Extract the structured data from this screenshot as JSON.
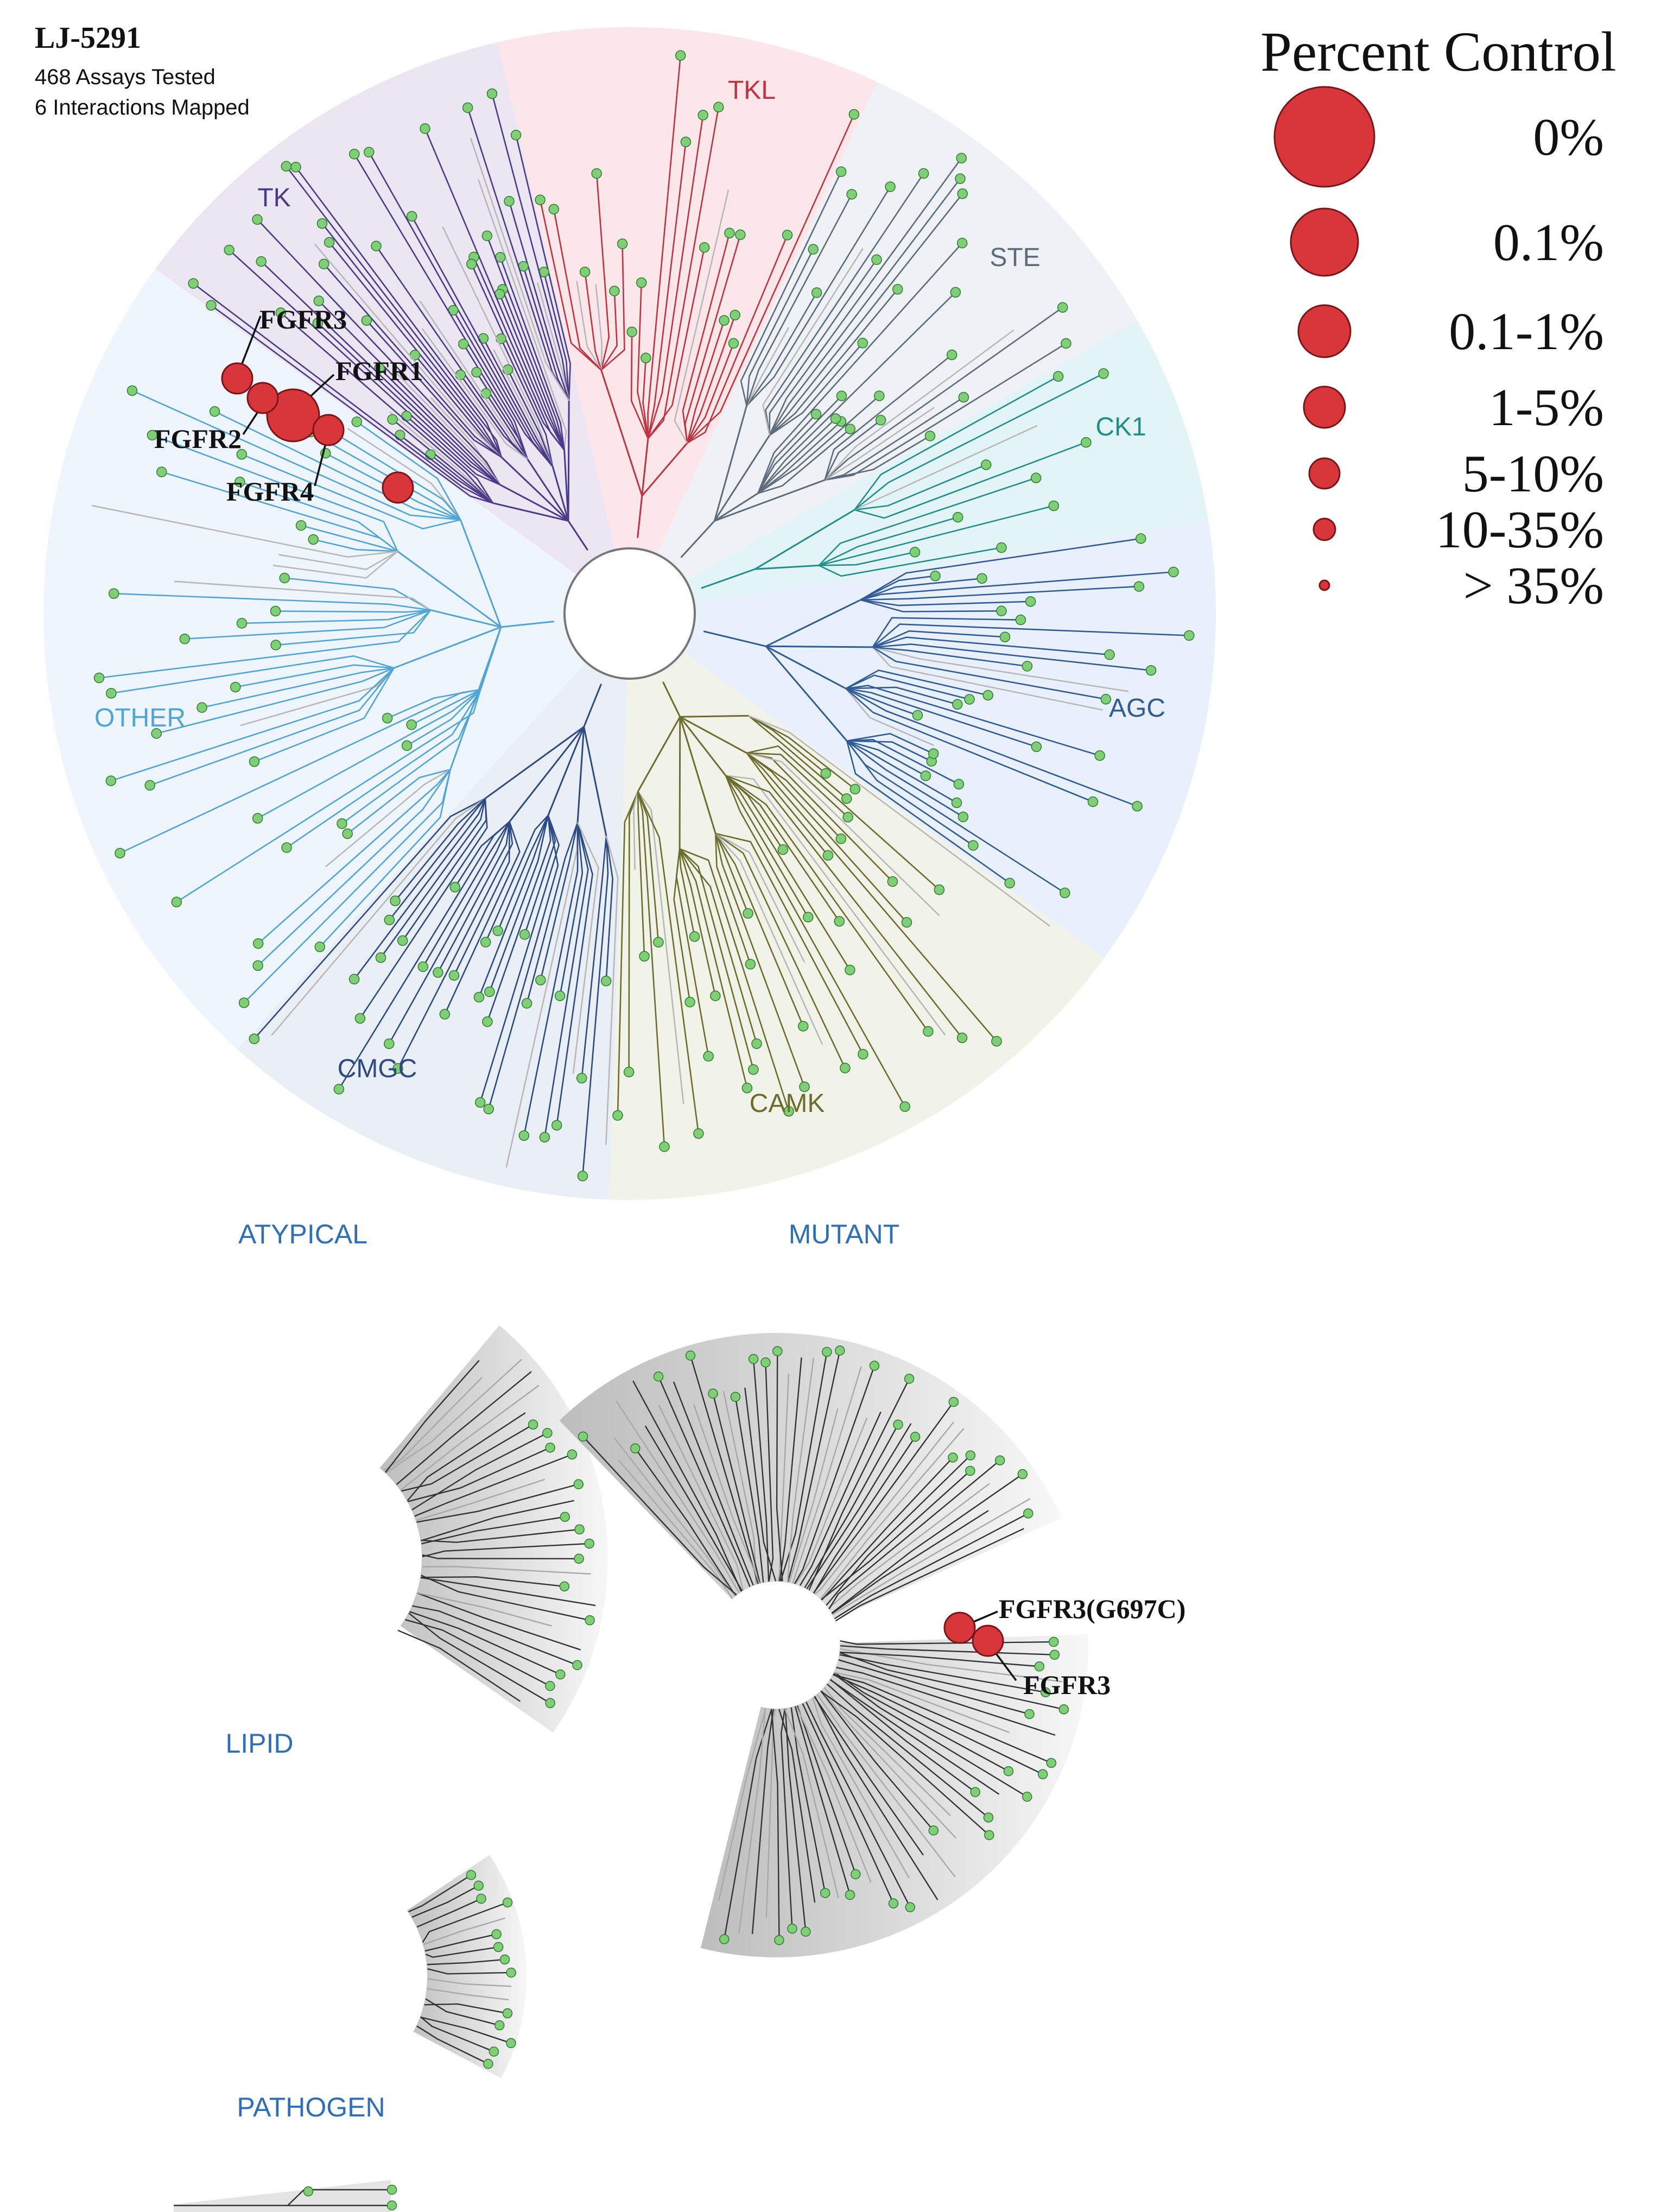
{
  "compound": "LJ-5291",
  "summary": {
    "assays": "468 Assays Tested",
    "interactions": "6 Interactions Mapped"
  },
  "legend": {
    "title": "Percent Control",
    "items": [
      {
        "label": "0%",
        "level": 0
      },
      {
        "label": "0.1%",
        "level": 1
      },
      {
        "label": "0.1-1%",
        "level": 2
      },
      {
        "label": "1-5%",
        "level": 3
      },
      {
        "label": "5-10%",
        "level": 4
      },
      {
        "label": "10-35%",
        "level": 5
      },
      {
        "label": "> 35%",
        "level": 6
      }
    ]
  },
  "groups": [
    {
      "name": "TK",
      "color": "#4b3a8c",
      "bg": "#ece6f2",
      "leaves": 56
    },
    {
      "name": "TKL",
      "color": "#c0323f",
      "bg": "#fbe6ea",
      "leaves": 24
    },
    {
      "name": "STE",
      "color": "#5d6b7a",
      "bg": "#eef2f6",
      "leaves": 30
    },
    {
      "name": "CK1",
      "color": "#1f8f8a",
      "bg": "#e3f4f7",
      "leaves": 10
    },
    {
      "name": "AGC",
      "color": "#2f5b96",
      "bg": "#e8f0fb",
      "leaves": 34
    },
    {
      "name": "CAMK",
      "color": "#6b6d2c",
      "bg": "#f2f3e8",
      "leaves": 44
    },
    {
      "name": "CMGC",
      "color": "#2b4a86",
      "bg": "#eaeff6",
      "leaves": 36
    },
    {
      "name": "OTHER",
      "color": "#4fa5d6",
      "bg": "#eef5fc",
      "leaves": 46
    }
  ],
  "sections": {
    "atypical": "ATYPICAL",
    "mutant": "MUTANT",
    "lipid": "LIPID",
    "pathogen": "PATHOGEN"
  },
  "hits": [
    {
      "target": "FGFR1",
      "label": "FGFR1",
      "tree": "main",
      "level": 2
    },
    {
      "target": "FGFR2",
      "label": "FGFR2",
      "tree": "main",
      "level": 4
    },
    {
      "target": "FGFR3",
      "label": "FGFR3",
      "tree": "main",
      "level": 4
    },
    {
      "target": "FGFR4",
      "label": "FGFR4",
      "tree": "main",
      "level": 4
    },
    {
      "target": "unlabeled-TK",
      "label": "",
      "tree": "main",
      "level": 4
    },
    {
      "target": "FGFR3(G697C)",
      "label": "FGFR3(G697C)",
      "tree": "mutant",
      "level": 4
    },
    {
      "target": "FGFR3",
      "label": "FGFR3",
      "tree": "mutant",
      "level": 4
    }
  ],
  "colors": {
    "hit": "#d8363a",
    "hit_stroke": "#7a1518",
    "leaf": "#7fcf76",
    "leaf_stroke": "#2e7a2e",
    "gray_branch": "#b8b8b8",
    "section_label": "#2f6fb8"
  }
}
